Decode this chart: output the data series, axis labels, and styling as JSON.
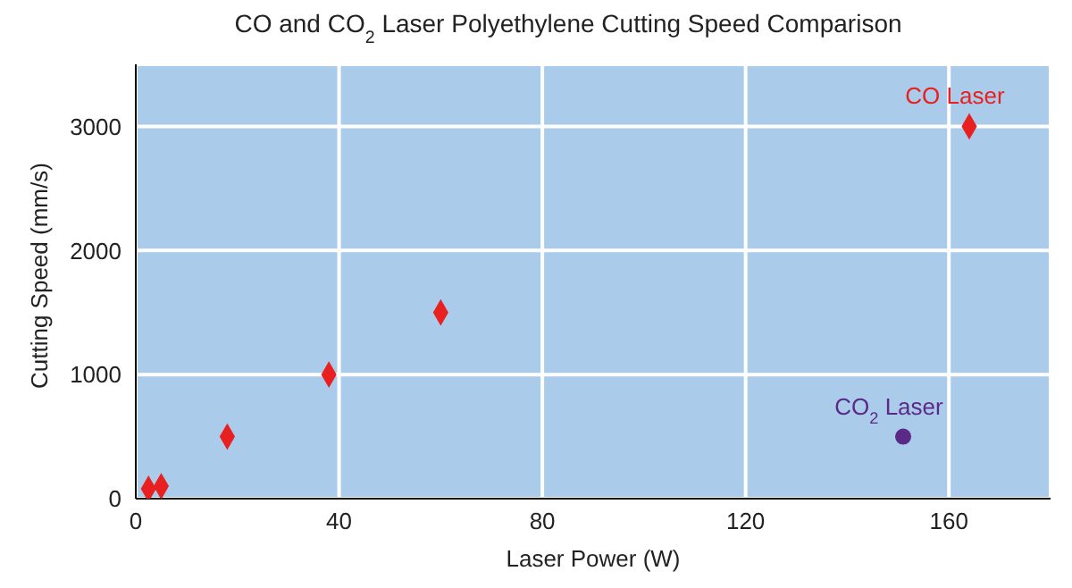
{
  "chart_data": {
    "type": "scatter",
    "title": "CO and CO$_{2}$ Laser Polyethylene Cutting Speed Comparison",
    "xlabel": "Laser Power (W)",
    "ylabel": "Cutting Speed (mm/s)",
    "series": [
      {
        "name": "CO Laser",
        "color": "#e8201f",
        "marker": "diamond",
        "x": [
          2.5,
          5,
          18,
          38,
          60,
          164
        ],
        "values": [
          80,
          100,
          500,
          1000,
          1500,
          3000
        ]
      },
      {
        "name": "CO$_{2}$ Laser",
        "color": "#5b2a86",
        "marker": "circle",
        "x": [
          151
        ],
        "values": [
          500
        ]
      }
    ],
    "xlim": [
      0,
      180
    ],
    "xticks": [
      0,
      40,
      80,
      120,
      160
    ],
    "ylim": [
      0,
      3500
    ],
    "yticks": [
      0,
      1000,
      2000,
      3000
    ],
    "grid": true
  }
}
